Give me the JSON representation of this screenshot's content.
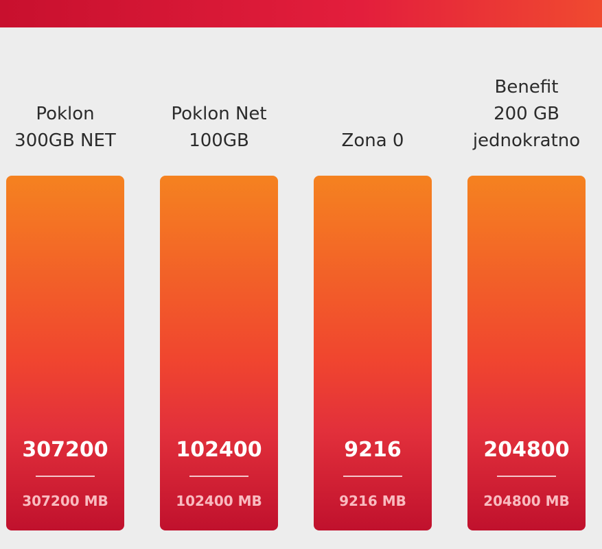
{
  "colors": {
    "header_gradient": [
      "#c8102e",
      "#e31e3c",
      "#f04a30"
    ],
    "bar_gradient": [
      "#f58220",
      "#f0452f",
      "#e2303b",
      "#c0112d"
    ],
    "background": "#ededed",
    "title_text": "#2b2b2b"
  },
  "cards": [
    {
      "title": "Poklon\n300GB NET",
      "value": "307200",
      "sub": "307200 MB"
    },
    {
      "title": "Poklon Net\n100GB",
      "value": "102400",
      "sub": "102400 MB"
    },
    {
      "title": "Zona 0",
      "value": "9216",
      "sub": "9216 MB"
    },
    {
      "title": "Benefit\n200 GB\njednokratno",
      "value": "204800",
      "sub": "204800 MB"
    }
  ]
}
